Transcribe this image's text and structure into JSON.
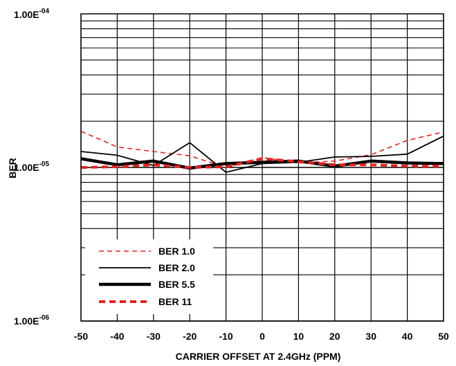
{
  "chart_data": {
    "type": "line",
    "title": "",
    "xlabel": "CARRIER OFFSET AT 2.4GHz (PPM)",
    "ylabel": "BER",
    "xlim": [
      -50,
      50
    ],
    "ylim": [
      1e-06,
      0.0001
    ],
    "y_scale": "log",
    "grid": true,
    "x_ticks": [
      "-50",
      "-40",
      "-30",
      "-20",
      "-10",
      "0",
      "10",
      "20",
      "30",
      "40",
      "50"
    ],
    "y_ticks": [
      {
        "mantissa": "1.00E",
        "exp": "-04"
      },
      {
        "mantissa": "1.00E",
        "exp": "-05"
      },
      {
        "mantissa": "1.00E",
        "exp": "-06"
      }
    ],
    "legend_position": "bottom-left",
    "series": [
      {
        "name": "BER 1.0",
        "color": "#e8201c",
        "style": "dashed-thin",
        "x": [
          -50,
          -40,
          -30,
          -20,
          -10,
          0,
          10,
          20,
          30,
          40,
          50
        ],
        "y": [
          1.72e-05,
          1.36e-05,
          1.27e-05,
          1.19e-05,
          1e-05,
          1.16e-05,
          1.07e-05,
          1.1e-05,
          1.21e-05,
          1.5e-05,
          1.7e-05
        ]
      },
      {
        "name": "BER 2.0",
        "color": "#000000",
        "style": "solid-thin",
        "x": [
          -50,
          -40,
          -30,
          -20,
          -10,
          0,
          10,
          20,
          30,
          40,
          50
        ],
        "y": [
          1.27e-05,
          1.2e-05,
          1.03e-05,
          1.45e-05,
          9.3e-06,
          1.06e-05,
          1.08e-05,
          1.17e-05,
          1.18e-05,
          1.22e-05,
          1.6e-05
        ]
      },
      {
        "name": "BER 5.5",
        "color": "#000000",
        "style": "solid-thick",
        "x": [
          -50,
          -40,
          -30,
          -20,
          -10,
          0,
          10,
          20,
          30,
          40,
          50
        ],
        "y": [
          1.14e-05,
          1.04e-05,
          1.1e-05,
          9.9e-06,
          1.06e-05,
          1.08e-05,
          1.1e-05,
          1.02e-05,
          1.1e-05,
          1.07e-05,
          1.06e-05
        ]
      },
      {
        "name": "BER 11",
        "color": "#e8201c",
        "style": "dashed-thick",
        "x": [
          -50,
          -40,
          -30,
          -20,
          -10,
          0,
          10,
          20,
          30,
          40,
          50
        ],
        "y": [
          1e-05,
          1.01e-05,
          1.04e-05,
          1e-05,
          1.01e-05,
          1.14e-05,
          1.09e-05,
          1.04e-05,
          1.04e-05,
          1.02e-05,
          1.02e-05
        ]
      }
    ]
  }
}
